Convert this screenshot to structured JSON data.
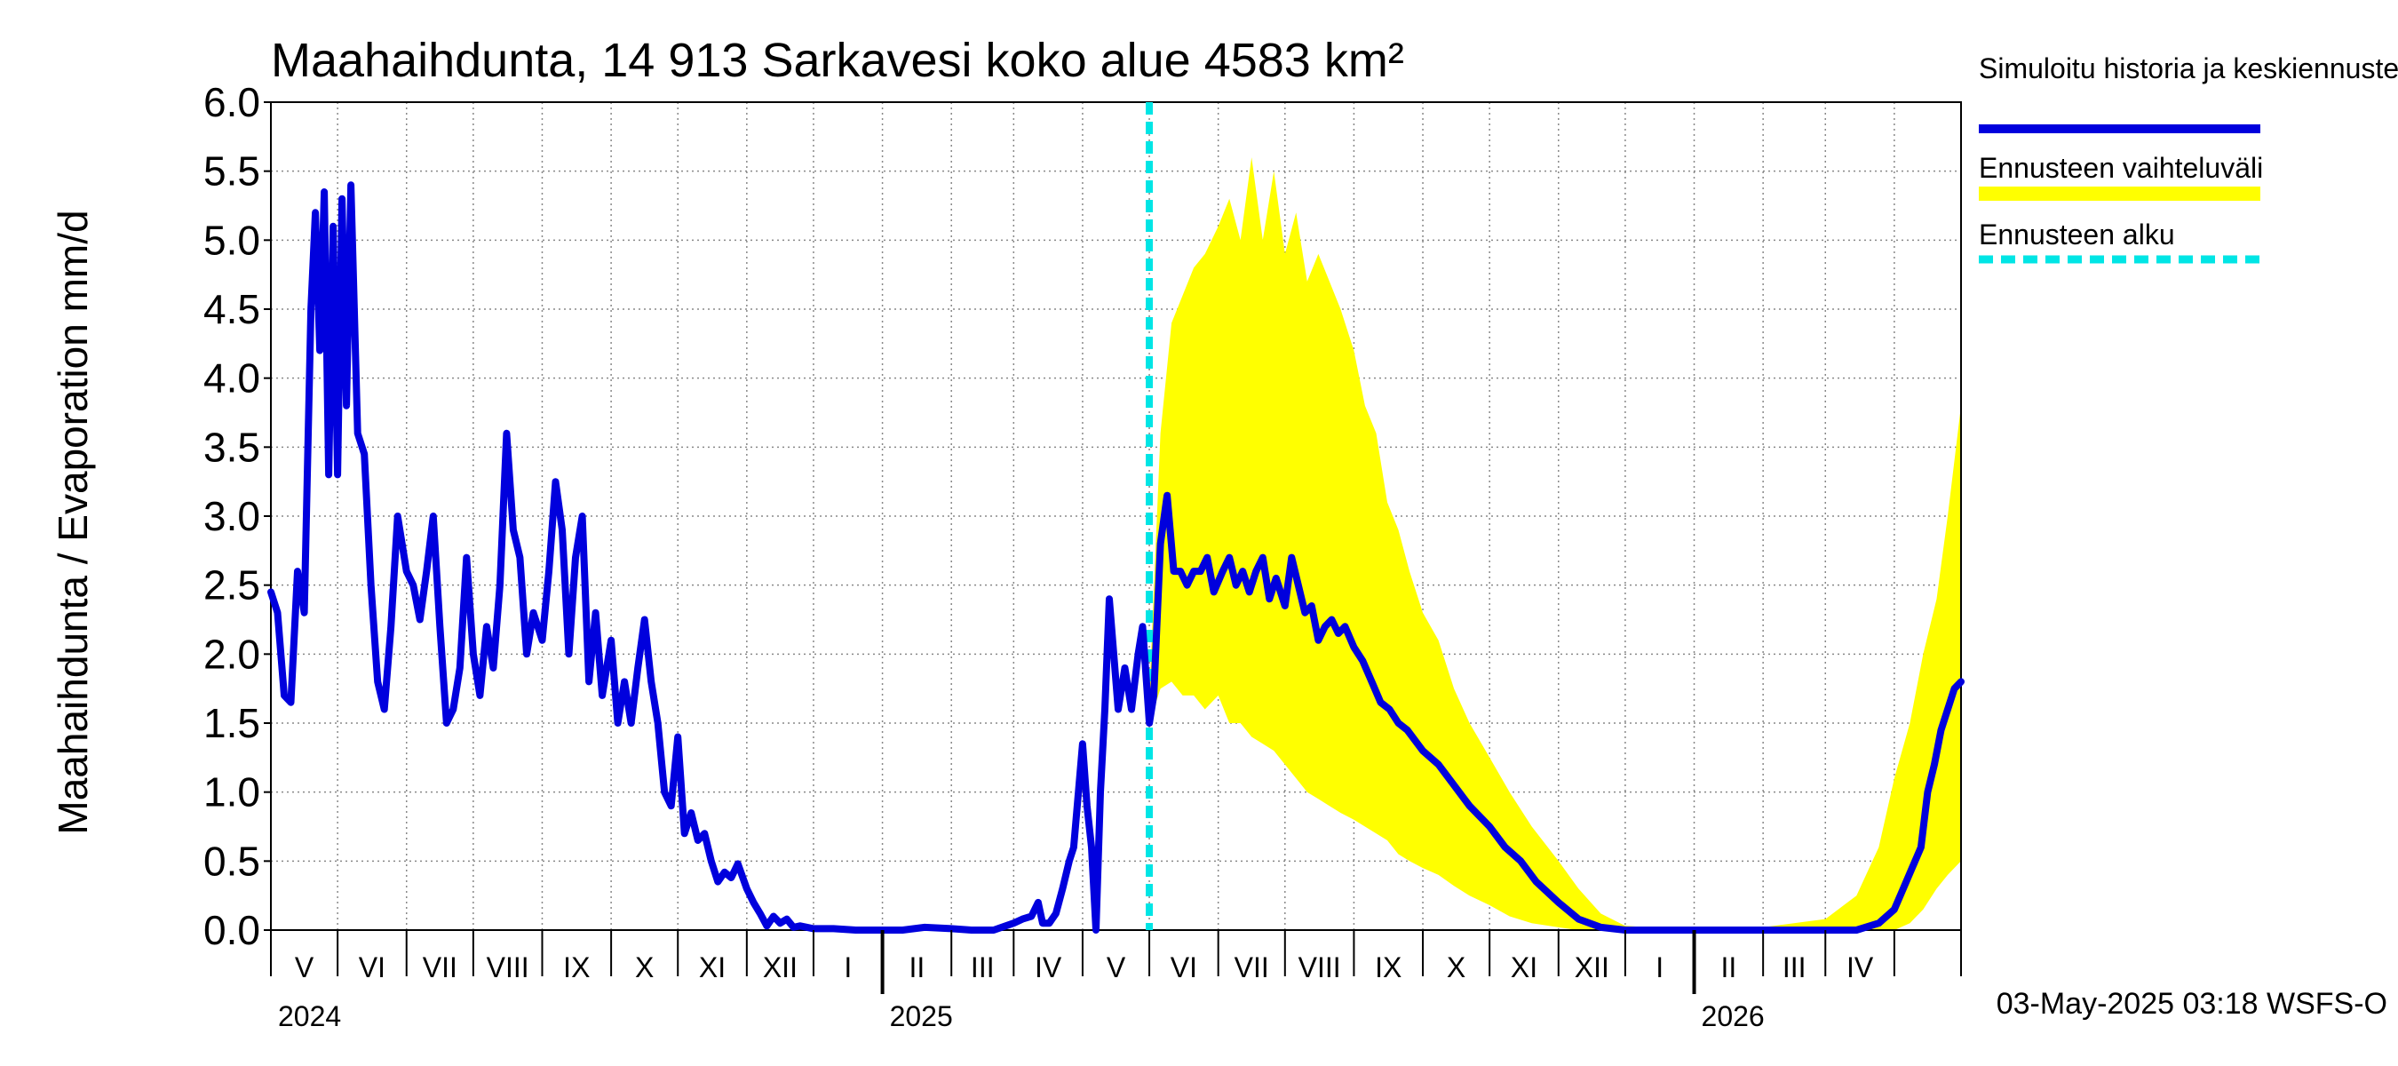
{
  "chart_data": {
    "type": "line",
    "title": "Maahaihdunta, 14 913 Sarkavesi koko alue 4583 km²",
    "ylabel": "Maahaihdunta / Evaporation   mm/d",
    "ylim": [
      0,
      6.0
    ],
    "yticks": [
      "0.0",
      "0.5",
      "1.0",
      "1.5",
      "2.0",
      "2.5",
      "3.0",
      "3.5",
      "4.0",
      "4.5",
      "5.0",
      "5.5",
      "6.0"
    ],
    "xlim": [
      "2024-04-01",
      "2026-05-01"
    ],
    "month_labels": [
      "V",
      "VI",
      "VII",
      "VIII",
      "IX",
      "X",
      "XI",
      "XII",
      "I",
      "II",
      "III",
      "IV",
      "V",
      "VI",
      "VII",
      "VIII",
      "IX",
      "X",
      "XI",
      "XII",
      "I",
      "II",
      "III",
      "IV"
    ],
    "year_labels": [
      "2024",
      "2025",
      "2026"
    ],
    "forecast_start": "2025-05-01",
    "grid": true,
    "legend_placement": "right",
    "legend": [
      {
        "label": "Simuloitu historia ja keskiennuste",
        "color": "#0000dd",
        "style": "solid"
      },
      {
        "label": "Ennusteen vaihteluväli",
        "color": "#ffff00",
        "style": "band"
      },
      {
        "label": "Ennusteen alku",
        "color": "#00e5e5",
        "style": "dashed"
      }
    ],
    "series": [
      {
        "name": "Simuloitu historia ja keskiennuste",
        "color": "#0000dd",
        "points": [
          [
            "2024-04-01",
            2.45
          ],
          [
            "2024-04-04",
            2.3
          ],
          [
            "2024-04-07",
            1.7
          ],
          [
            "2024-04-10",
            1.65
          ],
          [
            "2024-04-13",
            2.6
          ],
          [
            "2024-04-16",
            2.3
          ],
          [
            "2024-04-19",
            4.5
          ],
          [
            "2024-04-21",
            5.2
          ],
          [
            "2024-04-23",
            4.2
          ],
          [
            "2024-04-25",
            5.35
          ],
          [
            "2024-04-27",
            3.3
          ],
          [
            "2024-04-29",
            5.1
          ],
          [
            "2024-05-01",
            3.3
          ],
          [
            "2024-05-03",
            5.3
          ],
          [
            "2024-05-05",
            3.8
          ],
          [
            "2024-05-07",
            5.4
          ],
          [
            "2024-05-10",
            3.6
          ],
          [
            "2024-05-13",
            3.45
          ],
          [
            "2024-05-16",
            2.5
          ],
          [
            "2024-05-19",
            1.8
          ],
          [
            "2024-05-22",
            1.6
          ],
          [
            "2024-05-25",
            2.2
          ],
          [
            "2024-05-28",
            3.0
          ],
          [
            "2024-06-01",
            2.6
          ],
          [
            "2024-06-04",
            2.5
          ],
          [
            "2024-06-07",
            2.25
          ],
          [
            "2024-06-10",
            2.6
          ],
          [
            "2024-06-13",
            3.0
          ],
          [
            "2024-06-16",
            2.2
          ],
          [
            "2024-06-19",
            1.5
          ],
          [
            "2024-06-22",
            1.6
          ],
          [
            "2024-06-25",
            1.9
          ],
          [
            "2024-06-28",
            2.7
          ],
          [
            "2024-07-01",
            2.0
          ],
          [
            "2024-07-04",
            1.7
          ],
          [
            "2024-07-07",
            2.2
          ],
          [
            "2024-07-10",
            1.9
          ],
          [
            "2024-07-13",
            2.5
          ],
          [
            "2024-07-16",
            3.6
          ],
          [
            "2024-07-19",
            2.9
          ],
          [
            "2024-07-22",
            2.7
          ],
          [
            "2024-07-25",
            2.0
          ],
          [
            "2024-07-28",
            2.3
          ],
          [
            "2024-08-01",
            2.1
          ],
          [
            "2024-08-04",
            2.6
          ],
          [
            "2024-08-07",
            3.25
          ],
          [
            "2024-08-10",
            2.9
          ],
          [
            "2024-08-13",
            2.0
          ],
          [
            "2024-08-16",
            2.7
          ],
          [
            "2024-08-19",
            3.0
          ],
          [
            "2024-08-22",
            1.8
          ],
          [
            "2024-08-25",
            2.3
          ],
          [
            "2024-08-28",
            1.7
          ],
          [
            "2024-09-01",
            2.1
          ],
          [
            "2024-09-04",
            1.5
          ],
          [
            "2024-09-07",
            1.8
          ],
          [
            "2024-09-10",
            1.5
          ],
          [
            "2024-09-13",
            1.9
          ],
          [
            "2024-09-16",
            2.25
          ],
          [
            "2024-09-19",
            1.8
          ],
          [
            "2024-09-22",
            1.5
          ],
          [
            "2024-09-25",
            1.0
          ],
          [
            "2024-09-28",
            0.9
          ],
          [
            "2024-10-01",
            1.4
          ],
          [
            "2024-10-04",
            0.7
          ],
          [
            "2024-10-07",
            0.85
          ],
          [
            "2024-10-10",
            0.65
          ],
          [
            "2024-10-13",
            0.7
          ],
          [
            "2024-10-16",
            0.5
          ],
          [
            "2024-10-19",
            0.35
          ],
          [
            "2024-10-22",
            0.42
          ],
          [
            "2024-10-25",
            0.38
          ],
          [
            "2024-10-28",
            0.48
          ],
          [
            "2024-11-01",
            0.3
          ],
          [
            "2024-11-04",
            0.2
          ],
          [
            "2024-11-07",
            0.12
          ],
          [
            "2024-11-10",
            0.03
          ],
          [
            "2024-11-13",
            0.1
          ],
          [
            "2024-11-16",
            0.05
          ],
          [
            "2024-11-19",
            0.08
          ],
          [
            "2024-11-22",
            0.02
          ],
          [
            "2024-11-25",
            0.03
          ],
          [
            "2024-12-01",
            0.01
          ],
          [
            "2024-12-10",
            0.01
          ],
          [
            "2024-12-20",
            0.0
          ],
          [
            "2025-01-01",
            0.0
          ],
          [
            "2025-01-10",
            0.0
          ],
          [
            "2025-01-20",
            0.02
          ],
          [
            "2025-02-01",
            0.01
          ],
          [
            "2025-02-10",
            0.0
          ],
          [
            "2025-02-20",
            0.0
          ],
          [
            "2025-03-01",
            0.05
          ],
          [
            "2025-03-05",
            0.08
          ],
          [
            "2025-03-09",
            0.1
          ],
          [
            "2025-03-12",
            0.2
          ],
          [
            "2025-03-14",
            0.05
          ],
          [
            "2025-03-17",
            0.05
          ],
          [
            "2025-03-20",
            0.12
          ],
          [
            "2025-03-23",
            0.3
          ],
          [
            "2025-03-26",
            0.5
          ],
          [
            "2025-03-28",
            0.6
          ],
          [
            "2025-04-01",
            1.35
          ],
          [
            "2025-04-03",
            0.9
          ],
          [
            "2025-04-05",
            0.6
          ],
          [
            "2025-04-07",
            0.0
          ],
          [
            "2025-04-09",
            1.0
          ],
          [
            "2025-04-11",
            1.6
          ],
          [
            "2025-04-13",
            2.4
          ],
          [
            "2025-04-15",
            2.0
          ],
          [
            "2025-04-17",
            1.6
          ],
          [
            "2025-04-20",
            1.9
          ],
          [
            "2025-04-23",
            1.6
          ],
          [
            "2025-04-26",
            2.0
          ],
          [
            "2025-04-28",
            2.2
          ],
          [
            "2025-05-01",
            1.5
          ],
          [
            "2025-05-03",
            1.7
          ],
          [
            "2025-05-06",
            2.8
          ],
          [
            "2025-05-09",
            3.15
          ],
          [
            "2025-05-12",
            2.6
          ],
          [
            "2025-05-15",
            2.6
          ],
          [
            "2025-05-18",
            2.5
          ],
          [
            "2025-05-21",
            2.6
          ],
          [
            "2025-05-24",
            2.6
          ],
          [
            "2025-05-27",
            2.7
          ],
          [
            "2025-05-30",
            2.45
          ],
          [
            "2025-06-03",
            2.6
          ],
          [
            "2025-06-06",
            2.7
          ],
          [
            "2025-06-09",
            2.5
          ],
          [
            "2025-06-12",
            2.6
          ],
          [
            "2025-06-15",
            2.45
          ],
          [
            "2025-06-18",
            2.6
          ],
          [
            "2025-06-21",
            2.7
          ],
          [
            "2025-06-24",
            2.4
          ],
          [
            "2025-06-27",
            2.55
          ],
          [
            "2025-07-01",
            2.35
          ],
          [
            "2025-07-04",
            2.7
          ],
          [
            "2025-07-07",
            2.5
          ],
          [
            "2025-07-10",
            2.3
          ],
          [
            "2025-07-13",
            2.35
          ],
          [
            "2025-07-16",
            2.1
          ],
          [
            "2025-07-19",
            2.2
          ],
          [
            "2025-07-22",
            2.25
          ],
          [
            "2025-07-25",
            2.15
          ],
          [
            "2025-07-28",
            2.2
          ],
          [
            "2025-08-01",
            2.05
          ],
          [
            "2025-08-05",
            1.95
          ],
          [
            "2025-08-09",
            1.8
          ],
          [
            "2025-08-13",
            1.65
          ],
          [
            "2025-08-17",
            1.6
          ],
          [
            "2025-08-21",
            1.5
          ],
          [
            "2025-08-25",
            1.45
          ],
          [
            "2025-09-01",
            1.3
          ],
          [
            "2025-09-08",
            1.2
          ],
          [
            "2025-09-15",
            1.05
          ],
          [
            "2025-09-22",
            0.9
          ],
          [
            "2025-10-01",
            0.75
          ],
          [
            "2025-10-08",
            0.6
          ],
          [
            "2025-10-15",
            0.5
          ],
          [
            "2025-10-22",
            0.35
          ],
          [
            "2025-11-01",
            0.2
          ],
          [
            "2025-11-10",
            0.08
          ],
          [
            "2025-11-20",
            0.02
          ],
          [
            "2025-12-01",
            0.0
          ],
          [
            "2026-01-01",
            0.0
          ],
          [
            "2026-02-01",
            0.0
          ],
          [
            "2026-03-01",
            0.0
          ],
          [
            "2026-03-15",
            0.0
          ],
          [
            "2026-03-25",
            0.05
          ],
          [
            "2026-04-01",
            0.15
          ],
          [
            "2026-04-05",
            0.3
          ],
          [
            "2026-04-09",
            0.45
          ],
          [
            "2026-04-13",
            0.6
          ],
          [
            "2026-04-16",
            1.0
          ],
          [
            "2026-04-19",
            1.2
          ],
          [
            "2026-04-22",
            1.45
          ],
          [
            "2026-04-25",
            1.6
          ],
          [
            "2026-04-28",
            1.75
          ],
          [
            "2026-05-01",
            1.8
          ]
        ]
      }
    ],
    "forecast_band": {
      "name": "Ennusteen vaihteluväli",
      "color": "#ffff00",
      "points": [
        [
          "2025-05-01",
          1.5,
          1.7
        ],
        [
          "2025-05-06",
          1.75,
          3.6
        ],
        [
          "2025-05-11",
          1.8,
          4.4
        ],
        [
          "2025-05-16",
          1.7,
          4.6
        ],
        [
          "2025-05-21",
          1.7,
          4.8
        ],
        [
          "2025-05-26",
          1.6,
          4.9
        ],
        [
          "2025-06-01",
          1.7,
          5.1
        ],
        [
          "2025-06-06",
          1.5,
          5.3
        ],
        [
          "2025-06-11",
          1.5,
          5.0
        ],
        [
          "2025-06-16",
          1.4,
          5.6
        ],
        [
          "2025-06-21",
          1.35,
          5.0
        ],
        [
          "2025-06-26",
          1.3,
          5.5
        ],
        [
          "2025-07-01",
          1.2,
          4.9
        ],
        [
          "2025-07-06",
          1.1,
          5.2
        ],
        [
          "2025-07-11",
          1.0,
          4.7
        ],
        [
          "2025-07-16",
          0.95,
          4.9
        ],
        [
          "2025-07-21",
          0.9,
          4.7
        ],
        [
          "2025-07-26",
          0.85,
          4.5
        ],
        [
          "2025-08-01",
          0.8,
          4.2
        ],
        [
          "2025-08-06",
          0.75,
          3.8
        ],
        [
          "2025-08-11",
          0.7,
          3.6
        ],
        [
          "2025-08-16",
          0.65,
          3.1
        ],
        [
          "2025-08-21",
          0.55,
          2.9
        ],
        [
          "2025-08-26",
          0.5,
          2.6
        ],
        [
          "2025-09-01",
          0.45,
          2.3
        ],
        [
          "2025-09-08",
          0.4,
          2.1
        ],
        [
          "2025-09-15",
          0.32,
          1.75
        ],
        [
          "2025-09-22",
          0.25,
          1.5
        ],
        [
          "2025-10-01",
          0.18,
          1.25
        ],
        [
          "2025-10-10",
          0.1,
          1.0
        ],
        [
          "2025-10-20",
          0.05,
          0.75
        ],
        [
          "2025-11-01",
          0.02,
          0.5
        ],
        [
          "2025-11-10",
          0.0,
          0.3
        ],
        [
          "2025-11-20",
          0.0,
          0.12
        ],
        [
          "2025-12-01",
          0.0,
          0.03
        ],
        [
          "2026-01-01",
          0.0,
          0.0
        ],
        [
          "2026-02-01",
          0.0,
          0.02
        ],
        [
          "2026-03-01",
          0.0,
          0.08
        ],
        [
          "2026-03-15",
          0.0,
          0.25
        ],
        [
          "2026-03-25",
          0.0,
          0.6
        ],
        [
          "2026-04-01",
          0.0,
          1.1
        ],
        [
          "2026-04-08",
          0.05,
          1.5
        ],
        [
          "2026-04-14",
          0.15,
          2.0
        ],
        [
          "2026-04-20",
          0.3,
          2.4
        ],
        [
          "2026-04-25",
          0.4,
          3.0
        ],
        [
          "2026-05-01",
          0.5,
          3.8
        ]
      ]
    },
    "timestamp": "03-May-2025 03:18 WSFS-O"
  }
}
